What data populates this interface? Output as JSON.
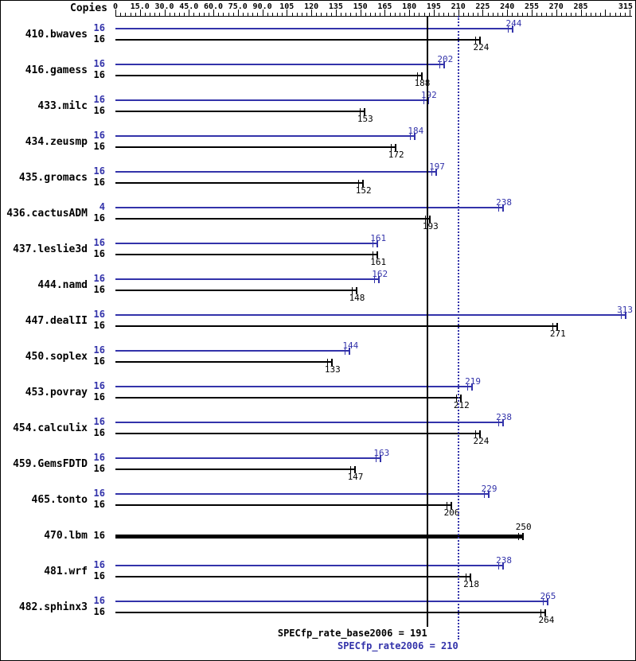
{
  "chart_data": {
    "type": "bar",
    "orientation": "horizontal",
    "copies_title": "Copies",
    "colors": {
      "peak": "#3333aa",
      "base": "#000000"
    },
    "x_axis": {
      "min": 0,
      "max": 315,
      "major_step": 15,
      "minor_step": 3,
      "labels": [
        [
          "0",
          0
        ],
        [
          "15.0",
          15
        ],
        [
          "30.0",
          30
        ],
        [
          "45.0",
          45
        ],
        [
          "60.0",
          60
        ],
        [
          "75.0",
          75
        ],
        [
          "90.0",
          90
        ],
        [
          "105",
          105
        ],
        [
          "120",
          120
        ],
        [
          "135",
          135
        ],
        [
          "150",
          150
        ],
        [
          "165",
          165
        ],
        [
          "180",
          180
        ],
        [
          "195",
          195
        ],
        [
          "210",
          210
        ],
        [
          "225",
          225
        ],
        [
          "240",
          240
        ],
        [
          "255",
          255
        ],
        [
          "270",
          270
        ],
        [
          "285",
          285
        ],
        [
          "315",
          315
        ]
      ]
    },
    "benchmarks": [
      {
        "name": "410.bwaves",
        "rows": [
          {
            "series": "peak",
            "copies": "16",
            "value": 244
          },
          {
            "series": "base",
            "copies": "16",
            "value": 224
          }
        ]
      },
      {
        "name": "416.gamess",
        "rows": [
          {
            "series": "peak",
            "copies": "16",
            "value": 202
          },
          {
            "series": "base",
            "copies": "16",
            "value": 188
          }
        ]
      },
      {
        "name": "433.milc",
        "rows": [
          {
            "series": "peak",
            "copies": "16",
            "value": 192
          },
          {
            "series": "base",
            "copies": "16",
            "value": 153
          }
        ]
      },
      {
        "name": "434.zeusmp",
        "rows": [
          {
            "series": "peak",
            "copies": "16",
            "value": 184
          },
          {
            "series": "base",
            "copies": "16",
            "value": 172
          }
        ]
      },
      {
        "name": "435.gromacs",
        "rows": [
          {
            "series": "peak",
            "copies": "16",
            "value": 197
          },
          {
            "series": "base",
            "copies": "16",
            "value": 152
          }
        ]
      },
      {
        "name": "436.cactusADM",
        "rows": [
          {
            "series": "peak",
            "copies": "4",
            "value": 238
          },
          {
            "series": "base",
            "copies": "16",
            "value": 193
          }
        ]
      },
      {
        "name": "437.leslie3d",
        "rows": [
          {
            "series": "peak",
            "copies": "16",
            "value": 161
          },
          {
            "series": "base",
            "copies": "16",
            "value": 161
          }
        ]
      },
      {
        "name": "444.namd",
        "rows": [
          {
            "series": "peak",
            "copies": "16",
            "value": 162
          },
          {
            "series": "base",
            "copies": "16",
            "value": 148
          }
        ]
      },
      {
        "name": "447.dealII",
        "rows": [
          {
            "series": "peak",
            "copies": "16",
            "value": 313
          },
          {
            "series": "base",
            "copies": "16",
            "value": 271
          }
        ]
      },
      {
        "name": "450.soplex",
        "rows": [
          {
            "series": "peak",
            "copies": "16",
            "value": 144
          },
          {
            "series": "base",
            "copies": "16",
            "value": 133
          }
        ]
      },
      {
        "name": "453.povray",
        "rows": [
          {
            "series": "peak",
            "copies": "16",
            "value": 219
          },
          {
            "series": "base",
            "copies": "16",
            "value": 212
          }
        ]
      },
      {
        "name": "454.calculix",
        "rows": [
          {
            "series": "peak",
            "copies": "16",
            "value": 238
          },
          {
            "series": "base",
            "copies": "16",
            "value": 224
          }
        ]
      },
      {
        "name": "459.GemsFDTD",
        "rows": [
          {
            "series": "peak",
            "copies": "16",
            "value": 163
          },
          {
            "series": "base",
            "copies": "16",
            "value": 147
          }
        ]
      },
      {
        "name": "465.tonto",
        "rows": [
          {
            "series": "peak",
            "copies": "16",
            "value": 229
          },
          {
            "series": "base",
            "copies": "16",
            "value": 206
          }
        ]
      },
      {
        "name": "470.lbm",
        "rows": [
          {
            "series": "base",
            "copies": "16",
            "value": 250,
            "thick": true
          }
        ]
      },
      {
        "name": "481.wrf",
        "rows": [
          {
            "series": "peak",
            "copies": "16",
            "value": 238
          },
          {
            "series": "base",
            "copies": "16",
            "value": 218
          }
        ]
      },
      {
        "name": "482.sphinx3",
        "rows": [
          {
            "series": "peak",
            "copies": "16",
            "value": 265
          },
          {
            "series": "base",
            "copies": "16",
            "value": 264
          }
        ]
      }
    ],
    "reference_lines": [
      {
        "label": "SPECfp_rate_base2006 = 191",
        "value": 191,
        "series": "base",
        "style": "solid"
      },
      {
        "label": "SPECfp_rate2006 = 210",
        "value": 210,
        "series": "peak",
        "style": "dotted"
      }
    ]
  }
}
